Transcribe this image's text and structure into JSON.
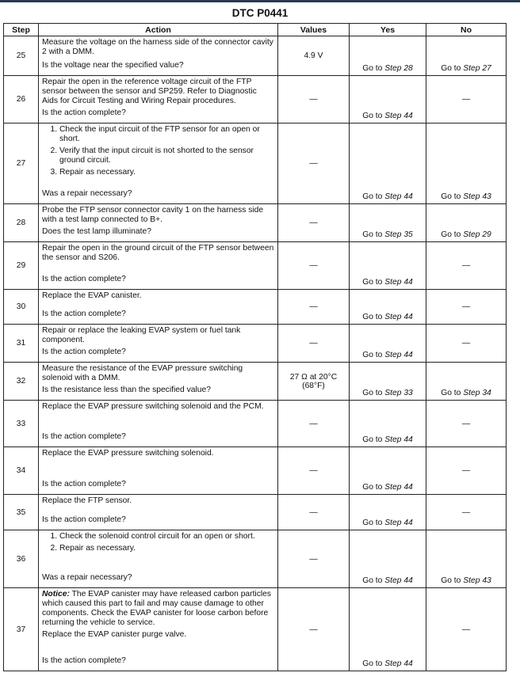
{
  "title": "DTC P0441",
  "headers": [
    "Step",
    "Action",
    "Values",
    "Yes",
    "No"
  ],
  "rows": [
    {
      "step": "25",
      "text": [
        "Measure the voltage on the harness side of the connector cavity 2 with a DMM."
      ],
      "question": "Is the voltage near the specified value?",
      "value": "4.9 V",
      "yes": "28",
      "no": "27"
    },
    {
      "step": "26",
      "text": [
        "Repair the open in the reference voltage circuit of the FTP sensor between the sensor and SP259. Refer to Diagnostic Aids for Circuit Testing and Wiring Repair procedures."
      ],
      "question": "Is the action complete?",
      "value": "—",
      "yes": "44",
      "no": "—"
    },
    {
      "step": "27",
      "list": [
        "Check the input circuit of the FTP sensor for an open or short.",
        "Verify that the input circuit is not shorted to the sensor ground circuit.",
        "Repair as necessary."
      ],
      "question": "Was a repair necessary?",
      "value": "—",
      "yes": "44",
      "no": "43"
    },
    {
      "step": "28",
      "text": [
        "Probe the FTP sensor connector cavity 1 on the harness side with a test lamp connected to B+."
      ],
      "question": "Does the test lamp illuminate?",
      "value": "—",
      "yes": "35",
      "no": "29"
    },
    {
      "step": "29",
      "text": [
        "Repair the open in the ground circuit of the FTP sensor between the sensor and S206."
      ],
      "question": "Is the action complete?",
      "value": "—",
      "yes": "44",
      "no": "—"
    },
    {
      "step": "30",
      "text": [
        "Replace the EVAP canister."
      ],
      "question": "Is the action complete?",
      "value": "—",
      "yes": "44",
      "no": "—"
    },
    {
      "step": "31",
      "text": [
        "Repair or replace the leaking EVAP system or fuel tank component."
      ],
      "question": "Is the action complete?",
      "value": "—",
      "yes": "44",
      "no": "—"
    },
    {
      "step": "32",
      "text": [
        "Measure the resistance of the EVAP pressure switching solenoid with a DMM."
      ],
      "question": "Is the resistance less than the specified value?",
      "value": "27 Ω at 20°C (68°F)",
      "yes": "33",
      "no": "34"
    },
    {
      "step": "33",
      "text": [
        "Replace the EVAP pressure switching solenoid and the PCM."
      ],
      "question": "Is the action complete?",
      "value": "—",
      "yes": "44",
      "no": "—"
    },
    {
      "step": "34",
      "text": [
        "Replace the EVAP pressure switching solenoid."
      ],
      "question": "Is the action complete?",
      "value": "—",
      "yes": "44",
      "no": "—"
    },
    {
      "step": "35",
      "text": [
        "Replace the FTP sensor."
      ],
      "question": "Is the action complete?",
      "value": "—",
      "yes": "44",
      "no": "—"
    },
    {
      "step": "36",
      "list": [
        "Check the solenoid control circuit for an open or short.",
        "Repair as necessary."
      ],
      "question": "Was a repair necessary?",
      "value": "—",
      "yes": "44",
      "no": "43"
    },
    {
      "step": "37",
      "notice_label": "Notice:",
      "notice": " The EVAP canister may have released carbon particles which caused this part to fail and may cause damage to other components. Check the EVAP canister for loose carbon before returning the vehicle to service.",
      "text": [
        "Replace the EVAP canister purge valve."
      ],
      "question": "Is the action complete?",
      "value": "—",
      "yes": "44",
      "no": "—"
    }
  ],
  "goto_prefix": "Go to ",
  "step_word": "Step"
}
